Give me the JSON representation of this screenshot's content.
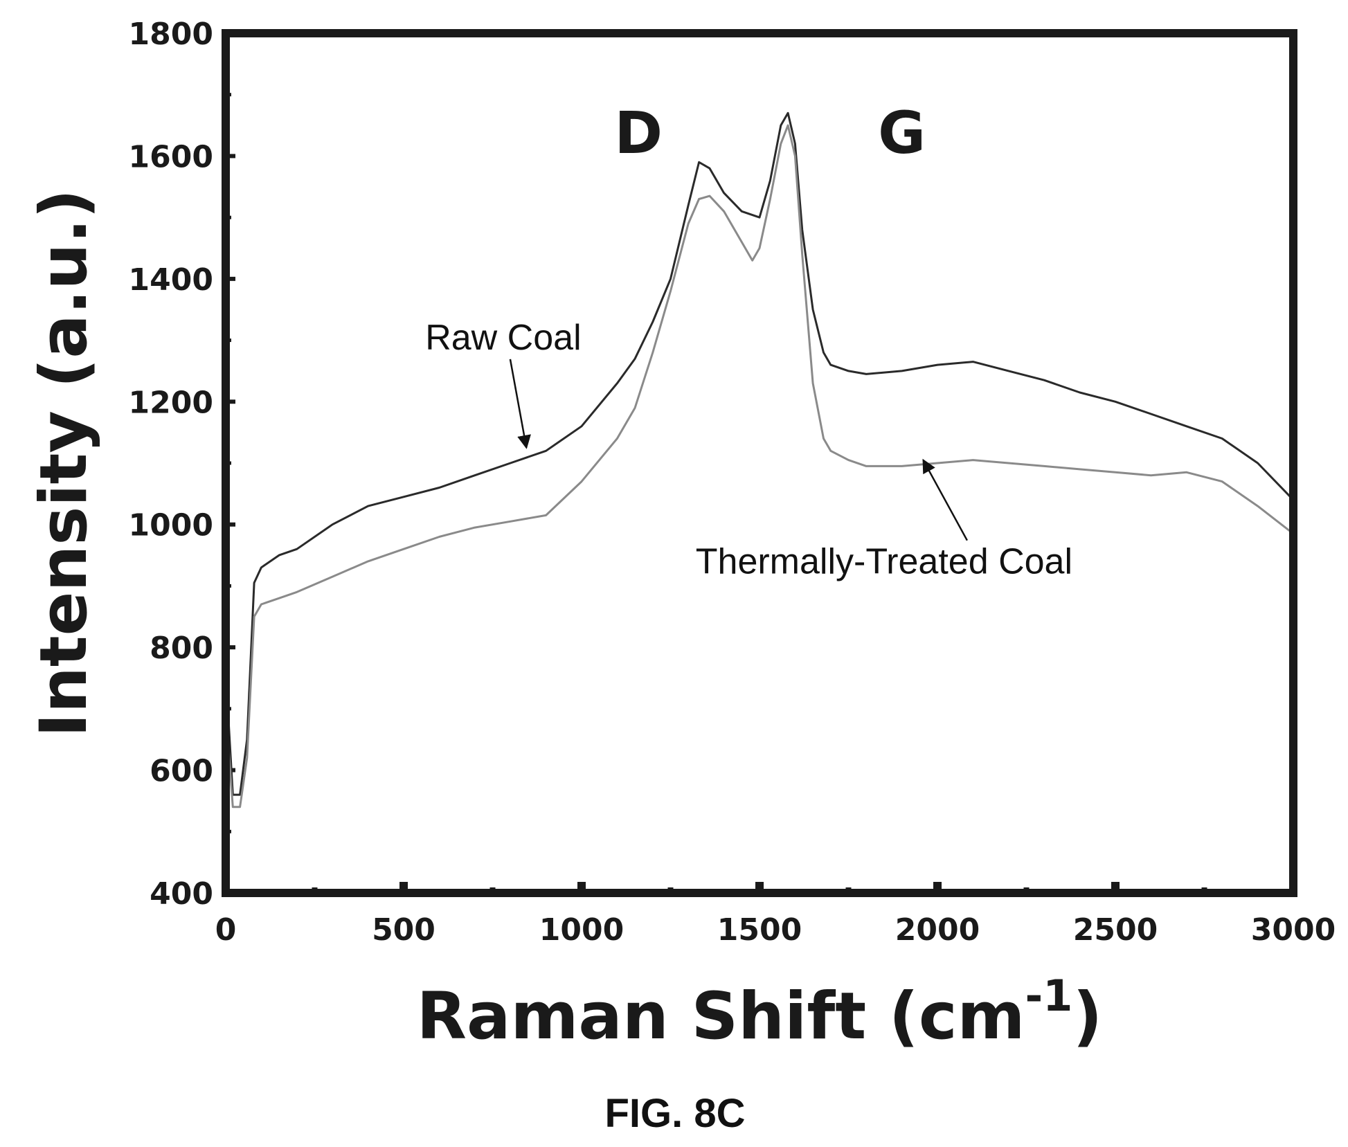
{
  "chart_data": {
    "type": "line",
    "title": "",
    "figure_label": "FIG. 8C",
    "xlabel": "Raman Shift (cm",
    "xlabel_superscript": "-1",
    "xlabel_close": ")",
    "ylabel": "Intensity (a.u.)",
    "xlim": [
      0,
      3000
    ],
    "ylim": [
      400,
      1800
    ],
    "xticks": [
      0,
      500,
      1000,
      1500,
      2000,
      2500,
      3000
    ],
    "yticks": [
      400,
      600,
      800,
      1000,
      1200,
      1400,
      1600,
      1800
    ],
    "grid": false,
    "legend": "none",
    "series": [
      {
        "name": "Raw Coal",
        "color": "#2a2a2a",
        "x": [
          0,
          20,
          40,
          60,
          80,
          100,
          150,
          200,
          300,
          400,
          500,
          600,
          700,
          800,
          900,
          1000,
          1100,
          1150,
          1200,
          1250,
          1300,
          1330,
          1360,
          1400,
          1450,
          1500,
          1530,
          1560,
          1580,
          1600,
          1620,
          1650,
          1680,
          1700,
          1750,
          1800,
          1900,
          2000,
          2100,
          2200,
          2300,
          2400,
          2500,
          2600,
          2700,
          2800,
          2900,
          3000
        ],
        "y": [
          760,
          560,
          560,
          650,
          905,
          930,
          950,
          960,
          1000,
          1030,
          1045,
          1060,
          1080,
          1100,
          1120,
          1160,
          1230,
          1270,
          1330,
          1400,
          1520,
          1590,
          1580,
          1540,
          1510,
          1500,
          1560,
          1650,
          1670,
          1620,
          1480,
          1350,
          1280,
          1260,
          1250,
          1245,
          1250,
          1260,
          1265,
          1250,
          1235,
          1215,
          1200,
          1180,
          1160,
          1140,
          1100,
          1040
        ]
      },
      {
        "name": "Thermally-Treated Coal",
        "color": "#8a8a8a",
        "x": [
          0,
          20,
          40,
          60,
          80,
          100,
          150,
          200,
          300,
          400,
          500,
          600,
          700,
          800,
          900,
          1000,
          1100,
          1150,
          1200,
          1250,
          1300,
          1330,
          1360,
          1400,
          1450,
          1480,
          1500,
          1530,
          1560,
          1580,
          1600,
          1620,
          1650,
          1680,
          1700,
          1750,
          1800,
          1900,
          2000,
          2100,
          2200,
          2300,
          2400,
          2500,
          2600,
          2700,
          2800,
          2900,
          3000
        ],
        "y": [
          700,
          540,
          540,
          620,
          850,
          870,
          880,
          890,
          915,
          940,
          960,
          980,
          995,
          1005,
          1015,
          1070,
          1140,
          1190,
          1280,
          1380,
          1490,
          1530,
          1535,
          1510,
          1460,
          1430,
          1450,
          1530,
          1620,
          1650,
          1600,
          1440,
          1230,
          1140,
          1120,
          1105,
          1095,
          1095,
          1100,
          1105,
          1100,
          1095,
          1090,
          1085,
          1080,
          1085,
          1070,
          1030,
          985
        ]
      }
    ],
    "annotations": [
      {
        "text": "D",
        "x": 1160,
        "y": 1605
      },
      {
        "text": "G",
        "x": 1900,
        "y": 1605
      },
      {
        "text": "Raw Coal",
        "x": 780,
        "y": 1285,
        "arrow_to": [
          845,
          1125
        ]
      },
      {
        "text": "Thermally-Treated Coal",
        "x": 1850,
        "y": 920,
        "arrow_to": [
          1960,
          1105
        ]
      }
    ]
  }
}
